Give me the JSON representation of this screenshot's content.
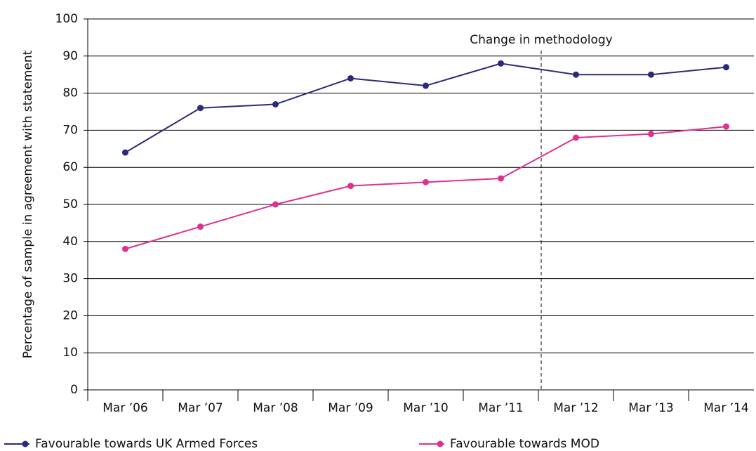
{
  "chart_data": {
    "type": "line",
    "y_label": "Percentage of sample in agreement with statement",
    "annotation": "Change in methodology",
    "categories": [
      "Mar ’06",
      "Mar ’07",
      "Mar ’08",
      "Mar ’09",
      "Mar ’10",
      "Mar ’11",
      "Mar ’12",
      "Mar ’13",
      "Mar ’14"
    ],
    "series": [
      {
        "name": "Favourable towards UK Armed Forces",
        "color": "#2b2a7a",
        "values": [
          64,
          76,
          77,
          84,
          82,
          88,
          85,
          85,
          87
        ]
      },
      {
        "name": "Favourable towards MOD",
        "color": "#e0308f",
        "values": [
          38,
          44,
          50,
          55,
          56,
          57,
          68,
          69,
          71
        ]
      }
    ],
    "ylim": [
      0,
      100
    ],
    "yticks": [
      0,
      10,
      20,
      30,
      40,
      50,
      60,
      70,
      80,
      90,
      100
    ],
    "grid": true
  }
}
